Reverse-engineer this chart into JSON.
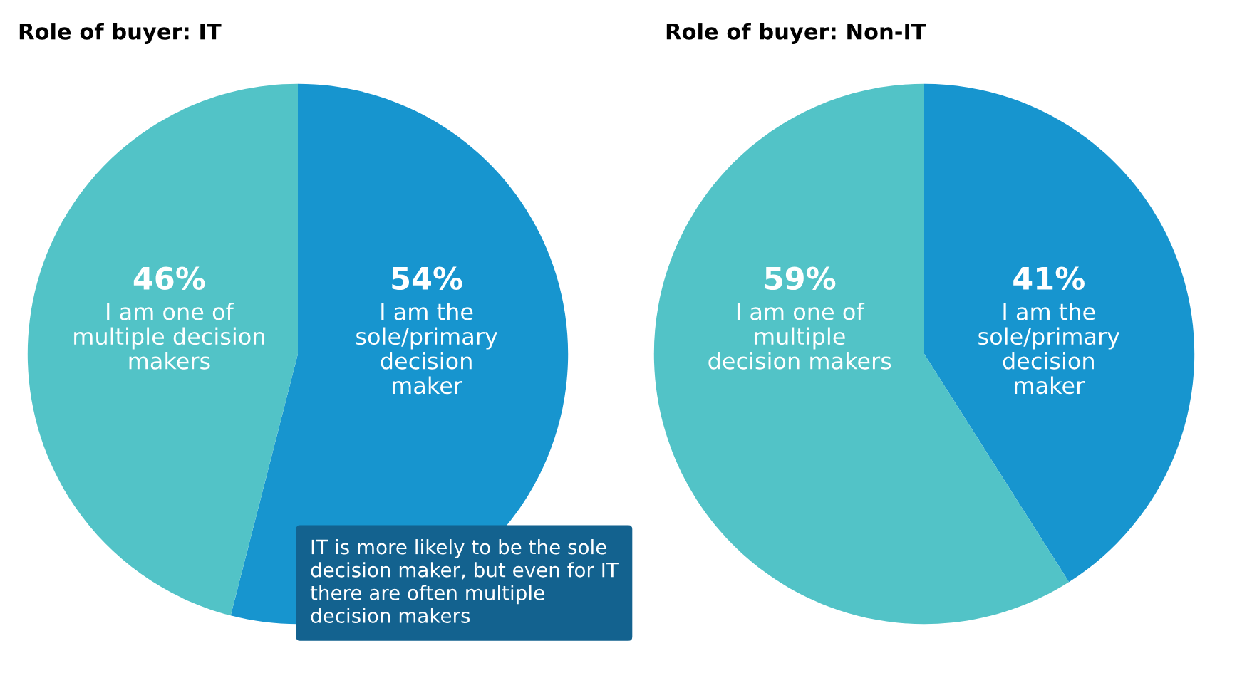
{
  "chart_data": [
    {
      "type": "pie",
      "title": "Role of buyer: IT",
      "categories": [
        "I am the\nsole/primary\ndecision\nmaker",
        "I am one of\nmultiple decision\nmakers"
      ],
      "values": [
        54,
        46
      ],
      "value_labels": [
        "54%",
        "46%"
      ],
      "colors": [
        "#1795cf",
        "#52c3c7"
      ],
      "annotations": [
        "IT is more likely to be the sole\ndecision maker, but even for IT\nthere are often multiple\ndecision makers"
      ]
    },
    {
      "type": "pie",
      "title": "Role of buyer: Non-IT",
      "categories": [
        "I am the\nsole/primary\ndecision\nmaker",
        "I am one of\nmultiple\ndecision makers"
      ],
      "values": [
        41,
        59
      ],
      "value_labels": [
        "41%",
        "59%"
      ],
      "colors": [
        "#1795cf",
        "#52c3c7"
      ]
    }
  ]
}
